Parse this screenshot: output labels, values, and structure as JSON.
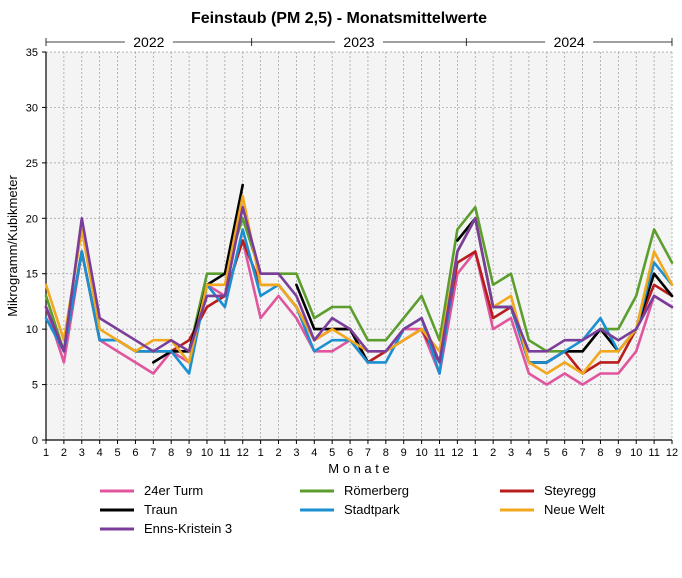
{
  "chart_data": {
    "type": "line",
    "title": "Feinstaub (PM 2,5) - Monatsmittelwerte",
    "xlabel": "M o n a t e",
    "ylabel": "Mikrogramm/Kubikmeter",
    "ylim": [
      0,
      35
    ],
    "yticks": [
      "0",
      "5",
      "10",
      "15",
      "20",
      "25",
      "30",
      "35"
    ],
    "grid": true,
    "legend_position": "bottom",
    "years": [
      "2022",
      "2023",
      "2024"
    ],
    "x_labels": [
      "1",
      "2",
      "3",
      "4",
      "5",
      "6",
      "7",
      "8",
      "9",
      "10",
      "11",
      "12",
      "1",
      "2",
      "3",
      "4",
      "5",
      "6",
      "7",
      "8",
      "9",
      "10",
      "11",
      "12",
      "1",
      "2",
      "3",
      "4",
      "5",
      "6",
      "7",
      "8",
      "9",
      "10",
      "11",
      "12"
    ],
    "series": [
      {
        "name": "24er Turm",
        "color": "#e0559e",
        "values": [
          12,
          7,
          17,
          9,
          8,
          7,
          6,
          8,
          7,
          14,
          13,
          18,
          11,
          13,
          11,
          8,
          8,
          9,
          7,
          8,
          10,
          10,
          6,
          15,
          17,
          10,
          11,
          6,
          5,
          6,
          5,
          6,
          6,
          8,
          13,
          12
        ]
      },
      {
        "name": "Römerberg",
        "color": "#5c9e2e",
        "values": [
          13,
          8,
          17,
          9,
          9,
          8,
          8,
          8,
          8,
          15,
          15,
          20,
          15,
          15,
          15,
          11,
          12,
          12,
          9,
          9,
          11,
          13,
          9,
          19,
          21,
          14,
          15,
          9,
          8,
          8,
          8,
          10,
          10,
          13,
          19,
          16
        ]
      },
      {
        "name": "Steyregg",
        "color": "#b81c1c",
        "values": [
          12,
          8,
          17,
          9,
          9,
          8,
          8,
          8,
          9,
          12,
          13,
          18,
          14,
          14,
          12,
          9,
          10,
          10,
          7,
          8,
          9,
          10,
          7,
          16,
          17,
          11,
          12,
          7,
          7,
          8,
          6,
          7,
          7,
          10,
          14,
          13
        ]
      },
      {
        "name": "Traun",
        "color": "#000000",
        "values": [
          null,
          null,
          null,
          null,
          null,
          null,
          7,
          8,
          8,
          14,
          15,
          23,
          null,
          null,
          14,
          10,
          10,
          10,
          7,
          null,
          null,
          null,
          null,
          18,
          20,
          12,
          12,
          7,
          7,
          8,
          8,
          10,
          8,
          10,
          15,
          13
        ]
      },
      {
        "name": "Stadtpark",
        "color": "#1a8fd1",
        "values": [
          11,
          8,
          17,
          9,
          9,
          8,
          8,
          8,
          6,
          14,
          12,
          19,
          13,
          14,
          12,
          8,
          9,
          9,
          7,
          7,
          10,
          11,
          6,
          17,
          20,
          12,
          12,
          7,
          7,
          8,
          9,
          11,
          8,
          10,
          16,
          14
        ]
      },
      {
        "name": "Neue Welt",
        "color": "#f2a81d",
        "values": [
          14,
          9,
          19,
          10,
          9,
          8,
          9,
          9,
          7,
          14,
          14,
          22,
          14,
          14,
          12,
          9,
          10,
          9,
          8,
          8,
          9,
          10,
          8,
          17,
          20,
          12,
          13,
          7,
          6,
          7,
          6,
          8,
          8,
          10,
          17,
          14
        ]
      },
      {
        "name": "Enns-Kristein 3",
        "color": "#7a3d99",
        "values": [
          12,
          8,
          20,
          11,
          10,
          9,
          8,
          9,
          8,
          13,
          13,
          21,
          15,
          15,
          13,
          9,
          11,
          10,
          8,
          8,
          10,
          11,
          7,
          17,
          20,
          12,
          12,
          8,
          8,
          9,
          9,
          10,
          9,
          10,
          13,
          12
        ]
      }
    ]
  }
}
